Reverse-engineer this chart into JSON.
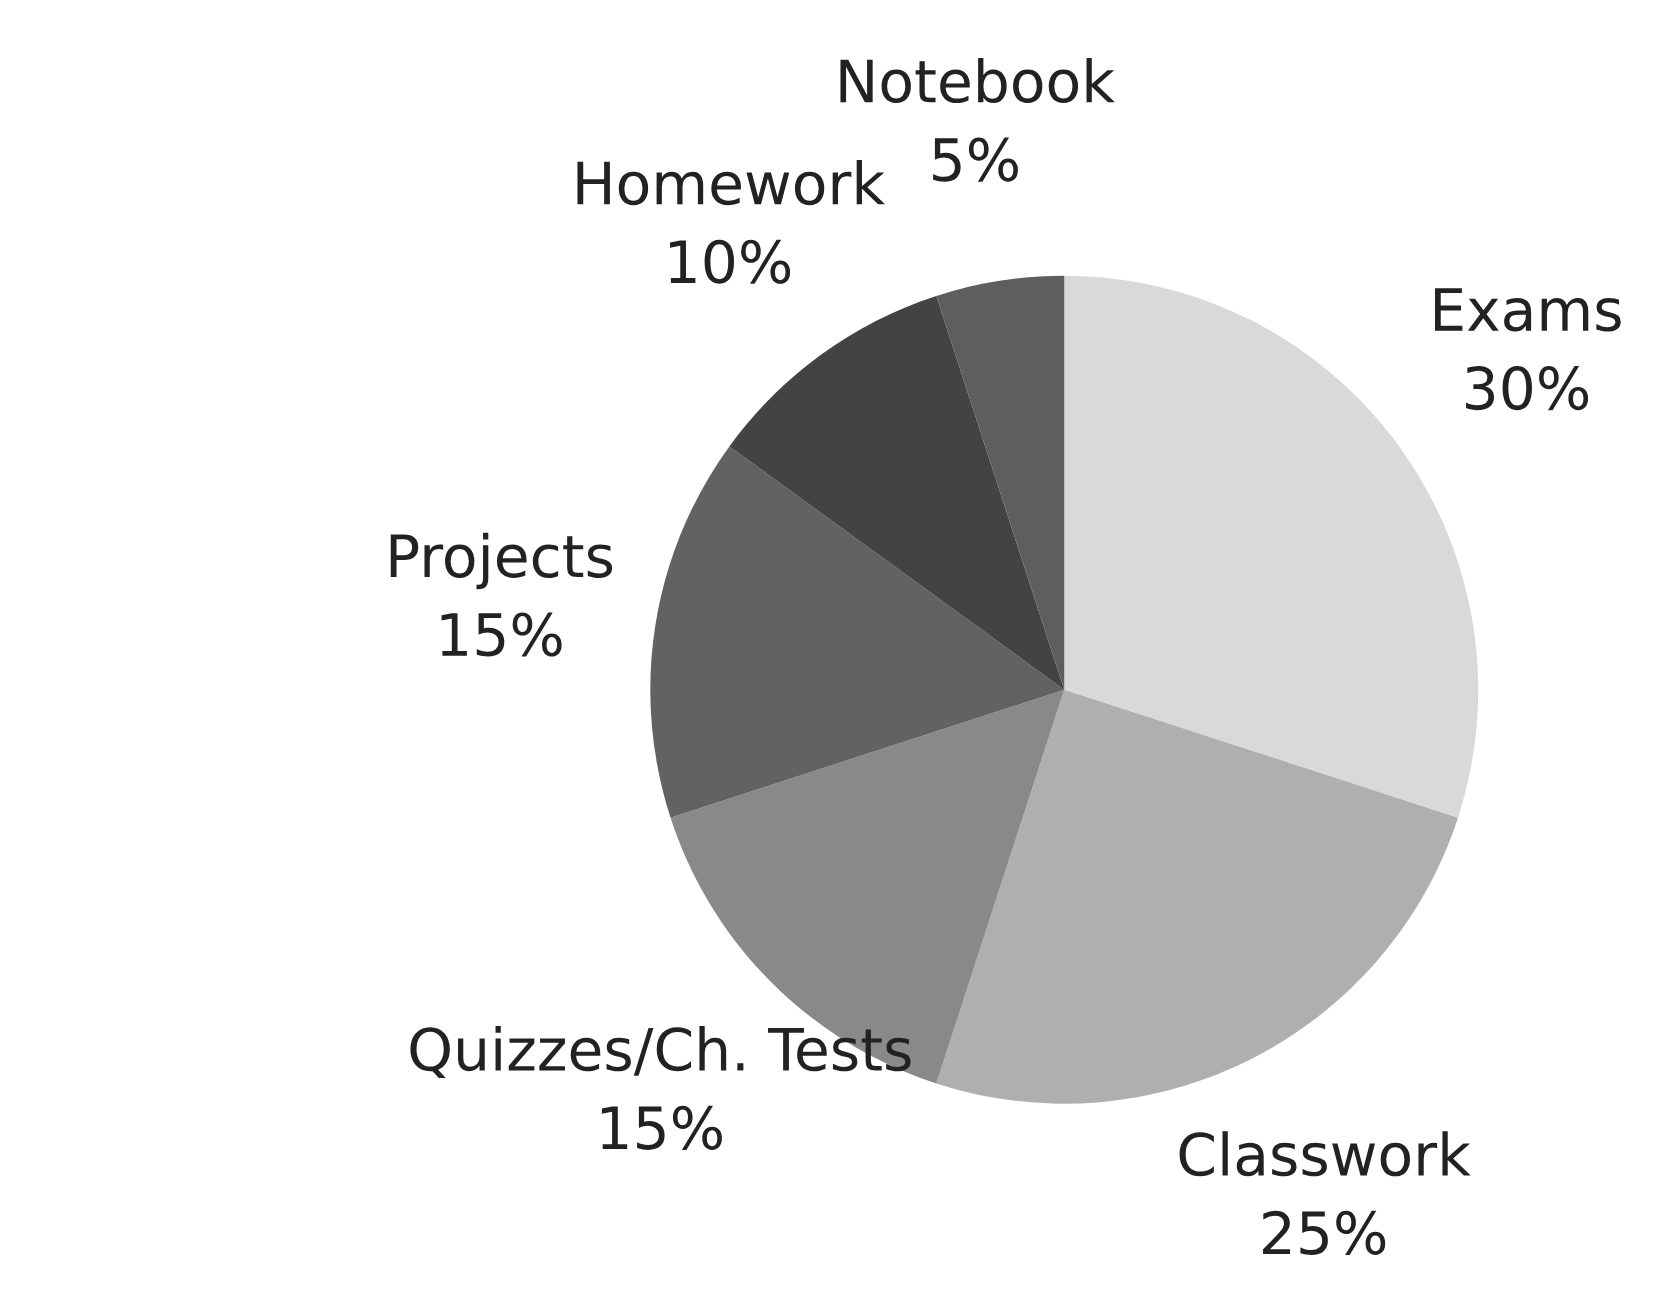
{
  "chart_data": {
    "type": "pie",
    "categories": [
      "Exams",
      "Classwork",
      "Quizzes/Ch. Tests",
      "Projects",
      "Homework",
      "Notebook"
    ],
    "values": [
      30,
      25,
      15,
      15,
      10,
      5
    ],
    "value_labels": [
      "30%",
      "25%",
      "15%",
      "15%",
      "10%",
      "5%"
    ],
    "colors": [
      "#d9d9d9",
      "#afafaf",
      "#898989",
      "#626262",
      "#434343",
      "#5e5e5e"
    ]
  }
}
